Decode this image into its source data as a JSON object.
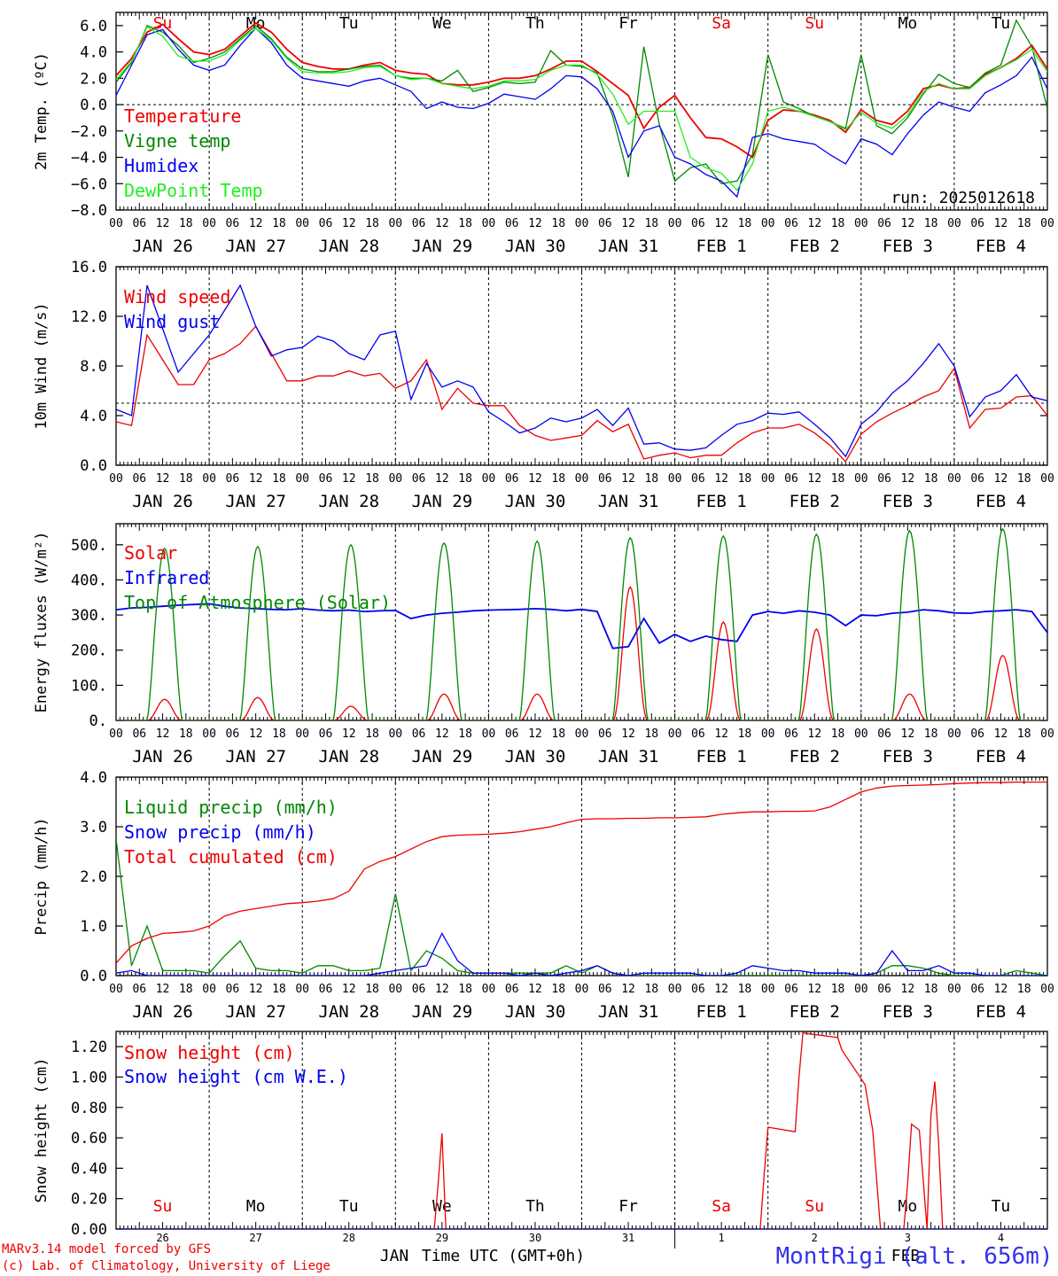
{
  "colors": {
    "red": "#ee0000",
    "green": "#008800",
    "lightgreen": "#22ee22",
    "blue": "#0000ee",
    "black": "#000000"
  },
  "run_label": "run: 2025012618",
  "hour_ticks": [
    "00",
    "06",
    "12",
    "18"
  ],
  "date_labels": [
    "JAN 26",
    "JAN 27",
    "JAN 28",
    "JAN 29",
    "JAN 30",
    "JAN 31",
    "FEB  1",
    "FEB  2",
    "FEB  3",
    "FEB  4"
  ],
  "weekdays": [
    "Su",
    "Mo",
    "Tu",
    "We",
    "Th",
    "Fr",
    "Sa",
    "Su",
    "Mo",
    "Tu"
  ],
  "weekday_colors": [
    "red",
    "black",
    "black",
    "black",
    "black",
    "black",
    "red",
    "red",
    "black",
    "black"
  ],
  "bottom_days": [
    "26",
    "27",
    "28",
    "29",
    "30",
    "31",
    "1",
    "2",
    "3",
    "4"
  ],
  "bottom_months": [
    "JAN",
    "FEB"
  ],
  "xlabel": "Time UTC (GMT+0h)",
  "credits": [
    "MARv3.14 model forced by GFS",
    "(c) Lab. of Climatology, University of Liege"
  ],
  "station": "MontRigi (alt. 656m)",
  "chart_data": [
    {
      "type": "line",
      "ylabel": "2m Temp. (ºC)",
      "ylim": [
        -8,
        7
      ],
      "yticks": [
        -8,
        -6,
        -4,
        -2,
        0,
        2,
        4,
        6
      ],
      "ytick_labels": [
        "−8.0",
        "−6.0",
        "−4.0",
        "−2.0",
        "0.0",
        "2.0",
        "4.0",
        "6.0"
      ],
      "reference_line": 0,
      "x": [
        0,
        4,
        8,
        12,
        16,
        20,
        24,
        28,
        32,
        36,
        40,
        44,
        48,
        52,
        56,
        60,
        64,
        68,
        72,
        76,
        80,
        84,
        88,
        92,
        96,
        100,
        104,
        108,
        112,
        116,
        120,
        124,
        128,
        132,
        136,
        140,
        144,
        148,
        152,
        156,
        160,
        164,
        168,
        172,
        176,
        180,
        184,
        188,
        192,
        196,
        200,
        204,
        208,
        212,
        216,
        220,
        224,
        228,
        232,
        236,
        240
      ],
      "series": [
        {
          "name": "Temperature",
          "color": "red",
          "values": [
            2.2,
            3.5,
            5.5,
            6.1,
            5.0,
            4.0,
            3.8,
            4.2,
            5.2,
            6.2,
            5.5,
            4.2,
            3.2,
            2.9,
            2.7,
            2.7,
            3.0,
            3.2,
            2.6,
            2.4,
            2.3,
            1.6,
            1.5,
            1.5,
            1.7,
            2.0,
            2.0,
            2.2,
            2.7,
            3.3,
            3.3,
            2.5,
            1.6,
            0.7,
            -1.8,
            -0.2,
            0.7,
            -1.0,
            -2.5,
            -2.6,
            -3.2,
            -4.0,
            -1.2,
            -0.4,
            -0.5,
            -0.8,
            -1.2,
            -2.1,
            -0.4,
            -1.2,
            -1.5,
            -0.5,
            1.2,
            1.5,
            1.2,
            1.3,
            2.3,
            2.8,
            3.5,
            4.5,
            2.7
          ]
        },
        {
          "name": "Vigne temp",
          "color": "green",
          "values": [
            1.7,
            3.2,
            6.0,
            5.5,
            4.5,
            3.2,
            3.5,
            4.0,
            5.0,
            6.0,
            5.0,
            3.6,
            2.7,
            2.5,
            2.5,
            2.7,
            2.9,
            3.0,
            2.2,
            2.0,
            2.0,
            1.8,
            2.6,
            1.0,
            1.3,
            1.7,
            1.6,
            1.7,
            4.1,
            3.0,
            2.9,
            2.4,
            -0.9,
            -5.5,
            4.4,
            -1.5,
            -5.8,
            -4.8,
            -4.5,
            -6.0,
            -5.8,
            -3.8,
            3.8,
            0.2,
            -0.3,
            -0.9,
            -1.3,
            -1.8,
            3.8,
            -1.6,
            -2.2,
            -1.0,
            0.8,
            2.3,
            1.6,
            1.3,
            2.4,
            3.0,
            6.4,
            4.4,
            -0.3
          ]
        },
        {
          "name": "Humidex",
          "color": "blue",
          "values": [
            0.7,
            3.0,
            5.3,
            5.7,
            4.2,
            3.0,
            2.6,
            3.0,
            4.5,
            5.8,
            4.7,
            3.0,
            2.0,
            1.8,
            1.6,
            1.4,
            1.8,
            2.0,
            1.5,
            1.0,
            -0.3,
            0.2,
            -0.2,
            -0.3,
            0.1,
            0.8,
            0.6,
            0.4,
            1.2,
            2.2,
            2.1,
            1.2,
            -0.5,
            -4.0,
            -2.0,
            -1.6,
            -4.0,
            -4.5,
            -5.3,
            -5.8,
            -7.0,
            -2.5,
            -2.2,
            -2.6,
            -2.8,
            -3.0,
            -3.8,
            -4.5,
            -2.6,
            -3.0,
            -3.8,
            -2.2,
            -0.8,
            0.2,
            -0.2,
            -0.5,
            0.9,
            1.5,
            2.2,
            3.6,
            1.2
          ]
        },
        {
          "name": "DewPoint Temp",
          "color": "lightgreen",
          "values": [
            1.9,
            3.3,
            5.9,
            5.2,
            3.7,
            3.3,
            3.3,
            3.8,
            4.9,
            5.8,
            4.9,
            3.5,
            2.5,
            2.4,
            2.4,
            2.5,
            2.8,
            2.9,
            2.2,
            1.9,
            2.0,
            1.6,
            1.4,
            1.2,
            1.4,
            1.8,
            1.8,
            1.9,
            2.6,
            3.0,
            3.0,
            2.3,
            0.8,
            -1.5,
            -0.5,
            -0.5,
            -0.5,
            -4.0,
            -4.8,
            -5.2,
            -6.5,
            -4.5,
            -0.5,
            -0.2,
            -0.5,
            -0.9,
            -1.3,
            -1.9,
            -0.6,
            -1.4,
            -1.8,
            -0.8,
            1.0,
            1.6,
            1.2,
            1.2,
            2.2,
            2.8,
            3.4,
            4.2,
            2.5
          ]
        }
      ]
    },
    {
      "type": "line",
      "ylabel": "10m Wind (m/s)",
      "ylim": [
        0,
        16
      ],
      "yticks": [
        0,
        4,
        8,
        12,
        16
      ],
      "ytick_labels": [
        "0.0",
        "4.0",
        "8.0",
        "12.0",
        "16.0"
      ],
      "reference_line": 5,
      "x": [
        0,
        4,
        8,
        12,
        16,
        20,
        24,
        28,
        32,
        36,
        40,
        44,
        48,
        52,
        56,
        60,
        64,
        68,
        72,
        76,
        80,
        84,
        88,
        92,
        96,
        100,
        104,
        108,
        112,
        116,
        120,
        124,
        128,
        132,
        136,
        140,
        144,
        148,
        152,
        156,
        160,
        164,
        168,
        172,
        176,
        180,
        184,
        188,
        192,
        196,
        200,
        204,
        208,
        212,
        216,
        220,
        224,
        228,
        232,
        236,
        240
      ],
      "series": [
        {
          "name": "Wind speed",
          "color": "red",
          "values": [
            3.5,
            3.2,
            10.5,
            8.5,
            6.5,
            6.5,
            8.5,
            9.0,
            9.8,
            11.2,
            9.0,
            6.8,
            6.8,
            7.2,
            7.2,
            7.6,
            7.2,
            7.4,
            6.2,
            6.8,
            8.5,
            4.5,
            6.2,
            5.0,
            4.8,
            4.8,
            3.2,
            2.4,
            2.0,
            2.2,
            2.4,
            3.6,
            2.7,
            3.3,
            0.5,
            0.8,
            1.0,
            0.6,
            0.8,
            0.8,
            1.8,
            2.6,
            3.0,
            3.0,
            3.3,
            2.6,
            1.6,
            0.3,
            2.5,
            3.5,
            4.2,
            4.8,
            5.5,
            6.0,
            7.8,
            3.0,
            4.5,
            4.6,
            5.5,
            5.6,
            4.0
          ]
        },
        {
          "name": "Wind gust",
          "color": "blue",
          "values": [
            4.5,
            4.0,
            14.5,
            11.0,
            7.5,
            9.0,
            10.5,
            12.5,
            14.5,
            11.2,
            8.8,
            9.3,
            9.5,
            10.4,
            10.0,
            9.0,
            8.5,
            10.5,
            10.8,
            5.3,
            8.2,
            6.3,
            6.8,
            6.3,
            4.3,
            3.5,
            2.6,
            3.0,
            3.8,
            3.5,
            3.8,
            4.5,
            3.2,
            4.6,
            1.7,
            1.8,
            1.3,
            1.2,
            1.4,
            2.4,
            3.3,
            3.6,
            4.2,
            4.1,
            4.3,
            3.3,
            2.2,
            0.7,
            3.3,
            4.3,
            5.8,
            6.8,
            8.2,
            9.8,
            8.0,
            3.9,
            5.5,
            6.0,
            7.3,
            5.5,
            5.2
          ]
        }
      ]
    },
    {
      "type": "line",
      "ylabel": "Energy fluxes (W/m²)",
      "ylim": [
        0,
        560
      ],
      "yticks": [
        0,
        100,
        200,
        300,
        400,
        500
      ],
      "ytick_labels": [
        "0.",
        "100.",
        "200.",
        "300.",
        "400.",
        "500."
      ],
      "x": [
        0,
        4,
        8,
        12,
        16,
        20,
        24,
        28,
        32,
        36,
        40,
        44,
        48,
        52,
        56,
        60,
        64,
        68,
        72,
        76,
        80,
        84,
        88,
        92,
        96,
        100,
        104,
        108,
        112,
        116,
        120,
        124,
        128,
        132,
        136,
        140,
        144,
        148,
        152,
        156,
        160,
        164,
        168,
        172,
        176,
        180,
        184,
        188,
        192,
        196,
        200,
        204,
        208,
        212,
        216,
        220,
        224,
        228,
        232,
        236,
        240
      ],
      "solar_days": {
        "day_start": [
          8,
          32,
          56,
          80,
          104,
          128,
          152,
          176,
          200,
          224
        ],
        "day_len": 9,
        "toa_peak": [
          490,
          495,
          500,
          505,
          510,
          520,
          525,
          530,
          540,
          545
        ],
        "solar_peak": [
          60,
          65,
          40,
          75,
          75,
          380,
          280,
          260,
          75,
          185
        ]
      },
      "series": [
        {
          "name": "Solar",
          "color": "red",
          "values": null
        },
        {
          "name": "Infrared",
          "color": "blue",
          "values": [
            315,
            320,
            322,
            325,
            328,
            330,
            332,
            325,
            320,
            318,
            316,
            315,
            318,
            314,
            312,
            314,
            310,
            312,
            313,
            290,
            300,
            305,
            308,
            312,
            314,
            315,
            316,
            318,
            316,
            312,
            316,
            310,
            205,
            210,
            290,
            220,
            245,
            225,
            240,
            230,
            225,
            300,
            310,
            305,
            312,
            308,
            300,
            270,
            300,
            298,
            305,
            308,
            315,
            312,
            306,
            305,
            310,
            312,
            315,
            310,
            250
          ]
        },
        {
          "name": "Top of Atmosphere (Solar)",
          "color": "green",
          "values": null
        }
      ]
    },
    {
      "type": "line",
      "ylabel": "Precip (mm/h)",
      "ylim": [
        0,
        4
      ],
      "yticks": [
        0,
        1,
        2,
        3,
        4
      ],
      "ytick_labels": [
        "0.0",
        "1.0",
        "2.0",
        "3.0",
        "4.0"
      ],
      "x": [
        0,
        4,
        8,
        12,
        16,
        20,
        24,
        28,
        32,
        36,
        40,
        44,
        48,
        52,
        56,
        60,
        64,
        68,
        72,
        76,
        80,
        84,
        88,
        92,
        96,
        100,
        104,
        108,
        112,
        116,
        120,
        124,
        128,
        132,
        136,
        140,
        144,
        148,
        152,
        156,
        160,
        164,
        168,
        172,
        176,
        180,
        184,
        188,
        192,
        196,
        200,
        204,
        208,
        212,
        216,
        220,
        224,
        228,
        232,
        236,
        240
      ],
      "series": [
        {
          "name": "Liquid precip (mm/h)",
          "color": "green",
          "values": [
            2.75,
            0.2,
            1.0,
            0.1,
            0.1,
            0.1,
            0.05,
            0.4,
            0.7,
            0.15,
            0.1,
            0.1,
            0.05,
            0.2,
            0.2,
            0.1,
            0.1,
            0.15,
            1.65,
            0.1,
            0.5,
            0.35,
            0.1,
            0.05,
            0.05,
            0.05,
            0.05,
            0.05,
            0.05,
            0.2,
            0.05,
            0.2,
            0.05,
            0.0,
            0.0,
            0.0,
            0.0,
            0.0,
            0.0,
            0.0,
            0.0,
            0.0,
            0.0,
            0.0,
            0.0,
            0.0,
            0.0,
            0.0,
            0.0,
            0.05,
            0.2,
            0.2,
            0.15,
            0.05,
            0.0,
            0.0,
            0.0,
            0.0,
            0.1,
            0.05,
            0.0
          ]
        },
        {
          "name": "Snow precip (mm/h)",
          "color": "blue",
          "values": [
            0.05,
            0.1,
            0.0,
            0.0,
            0.0,
            0.0,
            0.0,
            0.0,
            0.0,
            0.0,
            0.0,
            0.0,
            0.0,
            0.0,
            0.0,
            0.0,
            0.0,
            0.05,
            0.1,
            0.15,
            0.2,
            0.85,
            0.3,
            0.05,
            0.05,
            0.05,
            0.0,
            0.05,
            0.0,
            0.05,
            0.1,
            0.2,
            0.05,
            0.0,
            0.05,
            0.05,
            0.05,
            0.05,
            0.0,
            0.0,
            0.05,
            0.2,
            0.15,
            0.1,
            0.1,
            0.05,
            0.05,
            0.05,
            0.0,
            0.05,
            0.5,
            0.1,
            0.1,
            0.2,
            0.05,
            0.05,
            0.0,
            0.0,
            0.0,
            0.0,
            0.0
          ]
        },
        {
          "name": "Total cumulated (cm)",
          "color": "red",
          "values": [
            0.25,
            0.6,
            0.75,
            0.85,
            0.87,
            0.9,
            1.0,
            1.2,
            1.3,
            1.35,
            1.4,
            1.45,
            1.47,
            1.5,
            1.55,
            1.7,
            2.15,
            2.3,
            2.4,
            2.55,
            2.7,
            2.8,
            2.83,
            2.84,
            2.85,
            2.87,
            2.9,
            2.95,
            3.0,
            3.08,
            3.15,
            3.16,
            3.16,
            3.17,
            3.17,
            3.18,
            3.18,
            3.19,
            3.2,
            3.25,
            3.28,
            3.3,
            3.3,
            3.31,
            3.31,
            3.32,
            3.4,
            3.55,
            3.7,
            3.78,
            3.82,
            3.83,
            3.84,
            3.85,
            3.87,
            3.88,
            3.89,
            3.89,
            3.9,
            3.9,
            3.9
          ]
        }
      ]
    },
    {
      "type": "line",
      "ylabel": "Snow height (cm)",
      "ylim": [
        0,
        1.3
      ],
      "yticks": [
        0,
        0.2,
        0.4,
        0.6,
        0.8,
        1.0,
        1.2
      ],
      "ytick_labels": [
        "0.00",
        "0.20",
        "0.40",
        "0.60",
        "0.80",
        "1.00",
        "1.20"
      ],
      "series": [
        {
          "name": "Snow height (cm)",
          "color": "red",
          "x": [
            0,
            82,
            83,
            84,
            85,
            166,
            167,
            168,
            175,
            176,
            177,
            186,
            187,
            193,
            195,
            197,
            198,
            203,
            204,
            205,
            207,
            209,
            210,
            211,
            212,
            213,
            240
          ],
          "values": [
            0,
            0,
            0.3,
            0.63,
            0,
            0,
            0.35,
            0.67,
            0.64,
            1.0,
            1.29,
            1.26,
            1.18,
            0.95,
            0.65,
            0,
            0,
            0,
            0.3,
            0.69,
            0.65,
            0,
            0.75,
            0.97,
            0.55,
            0,
            0
          ]
        },
        {
          "name": "Snow height (cm W.E.)",
          "color": "blue",
          "x": [
            0,
            240
          ],
          "values": [
            0,
            0
          ]
        }
      ]
    }
  ]
}
